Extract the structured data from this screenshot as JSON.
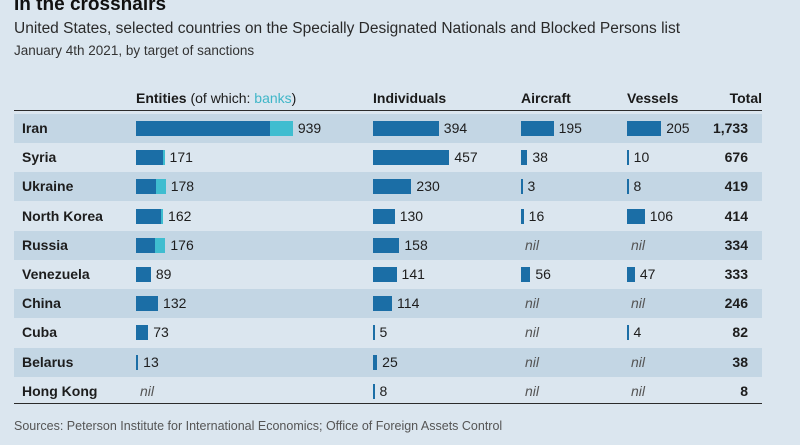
{
  "header": {
    "title": "In the crosshairs",
    "subtitle": "United States, selected countries on the Specially Designated Nationals and Blocked Persons list",
    "date_line": "January 4th 2021, by target of sanctions"
  },
  "columns": {
    "entities": "Entities",
    "entities_note_open": " (of which: ",
    "entities_note_banks": "banks",
    "entities_note_close": ")",
    "individuals": "Individuals",
    "aircraft": "Aircraft",
    "vessels": "Vessels",
    "total": "Total"
  },
  "nil_label": "nil",
  "colors": {
    "bar": "#1b6ea6",
    "banks": "#3fbdd0",
    "shade": "#c3d6e4",
    "background": "#dbe6ef"
  },
  "source": "Sources: Peterson Institute for International Economics; Office of Foreign Assets Control",
  "chart_data": {
    "type": "table",
    "title": "In the crosshairs",
    "subtitle": "United States, selected countries on the Specially Designated Nationals and Blocked Persons list",
    "note": "January 4th 2021, by target of sanctions",
    "columns": [
      "Entities",
      "Individuals",
      "Aircraft",
      "Vessels",
      "Total"
    ],
    "rows": [
      {
        "country": "Iran",
        "entities": 939,
        "banks": 138,
        "individuals": 394,
        "aircraft": 195,
        "vessels": 205,
        "total": "1,733"
      },
      {
        "country": "Syria",
        "entities": 171,
        "banks": 10,
        "individuals": 457,
        "aircraft": 38,
        "vessels": 10,
        "total": "676"
      },
      {
        "country": "Ukraine",
        "entities": 178,
        "banks": 60,
        "individuals": 230,
        "aircraft": 3,
        "vessels": 8,
        "total": "419"
      },
      {
        "country": "North Korea",
        "entities": 162,
        "banks": 12,
        "individuals": 130,
        "aircraft": 16,
        "vessels": 106,
        "total": "414"
      },
      {
        "country": "Russia",
        "entities": 176,
        "banks": 60,
        "individuals": 158,
        "aircraft": null,
        "vessels": null,
        "total": "334"
      },
      {
        "country": "Venezuela",
        "entities": 89,
        "banks": 0,
        "individuals": 141,
        "aircraft": 56,
        "vessels": 47,
        "total": "333"
      },
      {
        "country": "China",
        "entities": 132,
        "banks": 0,
        "individuals": 114,
        "aircraft": null,
        "vessels": null,
        "total": "246"
      },
      {
        "country": "Cuba",
        "entities": 73,
        "banks": 0,
        "individuals": 5,
        "aircraft": null,
        "vessels": 4,
        "total": "82"
      },
      {
        "country": "Belarus",
        "entities": 13,
        "banks": 0,
        "individuals": 25,
        "aircraft": null,
        "vessels": null,
        "total": "38"
      },
      {
        "country": "Hong Kong",
        "entities": null,
        "banks": 0,
        "individuals": 8,
        "aircraft": null,
        "vessels": null,
        "total": "8"
      }
    ]
  }
}
